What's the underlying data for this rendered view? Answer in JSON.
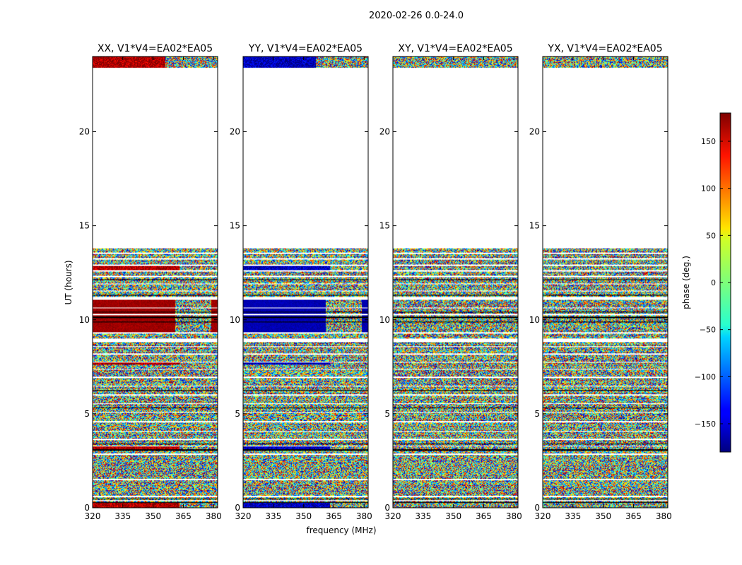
{
  "suptitle": "2020-02-26 0.0-24.0",
  "chart_data": {
    "type": "heatmap",
    "title": "2020-02-26 0.0-24.0",
    "xlabel": "frequency (MHz)",
    "ylabel": "UT (hours)",
    "xlim": [
      320,
      382
    ],
    "ylim": [
      0,
      24
    ],
    "xticks": [
      320,
      335,
      350,
      365,
      380
    ],
    "yticks": [
      0,
      5,
      10,
      15,
      20
    ],
    "panels": [
      {
        "title": "XX, V1*V4=EA02*EA05",
        "pol": "XX",
        "phase_bias": 180
      },
      {
        "title": "YY, V1*V4=EA02*EA05",
        "pol": "YY",
        "phase_bias": -170
      },
      {
        "title": "XY, V1*V4=EA02*EA05",
        "pol": "XY",
        "phase_bias": null
      },
      {
        "title": "YX, V1*V4=EA02*EA05",
        "pol": "YX",
        "phase_bias": null
      }
    ],
    "flagged_time_ranges_hours": [
      [
        13.8,
        23.4
      ]
    ],
    "coherent_block": {
      "t_start": 9.3,
      "t_end": 11.1,
      "f_end": 361
    },
    "colorbar": {
      "label": "phase (deg.)",
      "range": [
        -180,
        180
      ],
      "ticks": [
        150,
        100,
        50,
        0,
        -50,
        -100,
        -150
      ],
      "tick_labels": [
        "150",
        "100",
        "50",
        "0",
        "−50",
        "−100",
        "−150"
      ],
      "colormap": "jet"
    }
  }
}
